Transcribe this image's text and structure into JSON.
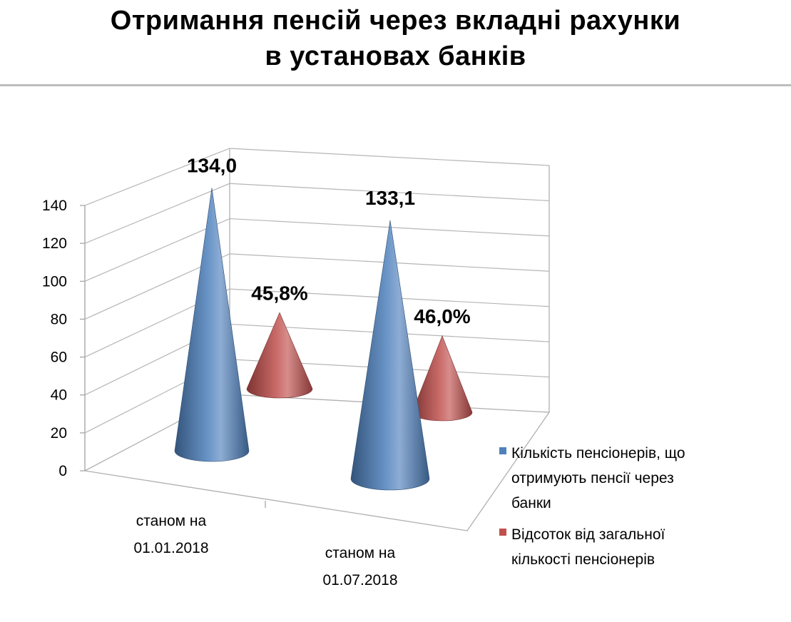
{
  "title_line1": "Отримання пенсій через вкладні рахунки",
  "title_line2": "в установах банків",
  "chart_data": {
    "type": "bar",
    "subtype": "3d-cone",
    "categories": [
      [
        "станом на",
        "01.01.2018"
      ],
      [
        "станом на",
        "01.07.2018"
      ]
    ],
    "series": [
      {
        "name_lines": [
          "Кількість пенсіонерів, що",
          "отримують пенсії через",
          "банки"
        ],
        "color": "#4f81bd",
        "values": [
          134.0,
          133.1
        ],
        "labels": [
          "134,0",
          "133,1"
        ]
      },
      {
        "name_lines": [
          "Відсоток від загальної",
          "кількості пенсіонерів"
        ],
        "color": "#c0504d",
        "values": [
          45.8,
          46.0
        ],
        "labels": [
          "45,8%",
          "46,0%"
        ]
      }
    ],
    "ylim": [
      0,
      140
    ],
    "yticks": [
      "0",
      "20",
      "40",
      "60",
      "80",
      "100",
      "120",
      "140"
    ],
    "grid": true,
    "legend": "right"
  }
}
